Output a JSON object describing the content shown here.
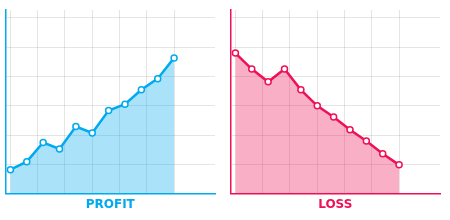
{
  "chart_data": [
    {
      "type": "area",
      "xlabel": "PROFIT",
      "x": [
        0,
        1,
        2,
        3,
        4,
        5,
        6,
        7,
        8,
        9,
        10
      ],
      "values": [
        1.5,
        2.0,
        3.2,
        2.8,
        4.2,
        3.8,
        5.2,
        5.6,
        6.5,
        7.2,
        8.5
      ],
      "color": "#00AAEE",
      "marker": "circle",
      "xlim": [
        -0.3,
        12.5
      ],
      "ylim": [
        0,
        11.5
      ],
      "xticks": [
        0,
        1.6666666666666667,
        3.3333333333333335,
        5,
        6.666666666666667,
        8.333333333333334,
        10
      ],
      "yticks": [
        0,
        1.8333333333333333,
        3.6666666666666665,
        5.5,
        7.333333333333333,
        9.166666666666666,
        11
      ],
      "grid": true,
      "tick_labels": false
    },
    {
      "type": "area",
      "xlabel": "LOSS",
      "x": [
        0,
        1,
        2,
        3,
        4,
        5,
        6,
        7,
        8,
        9,
        10
      ],
      "values": [
        8.8,
        7.8,
        7.0,
        7.8,
        6.5,
        5.5,
        4.8,
        4.0,
        3.3,
        2.5,
        1.8
      ],
      "color": "#EE1155",
      "marker": "circle",
      "xlim": [
        -0.3,
        12.5
      ],
      "ylim": [
        0,
        11.5
      ],
      "xticks": [
        0,
        1.6666666666666667,
        3.3333333333333335,
        5,
        6.666666666666667,
        8.333333333333334,
        10
      ],
      "yticks": [
        0,
        1.8333333333333333,
        3.6666666666666665,
        5.5,
        7.333333333333333,
        9.166666666666666,
        11
      ],
      "grid": true,
      "tick_labels": false
    }
  ]
}
